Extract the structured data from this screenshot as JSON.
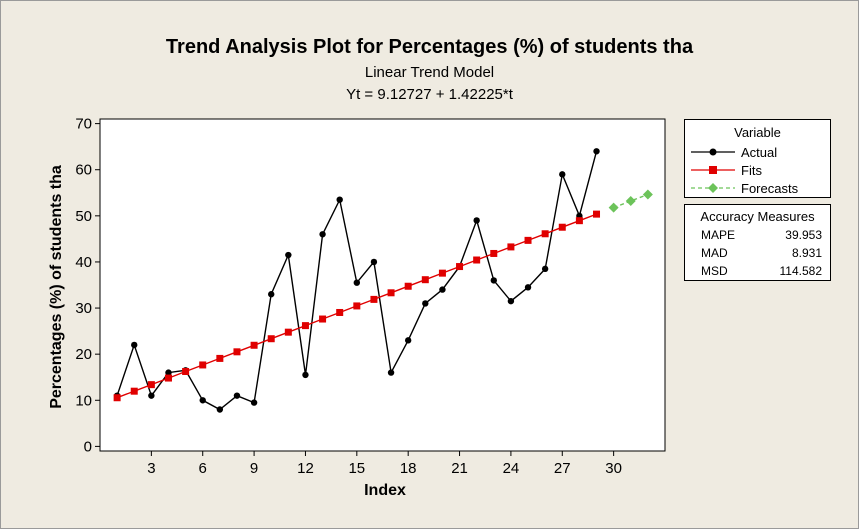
{
  "chart_data": {
    "type": "line",
    "title": "Trend Analysis Plot for Percentages (%) of students tha",
    "subtitle": "Linear Trend Model",
    "equation": "Yt = 9.12727 + 1.42225*t",
    "xlabel": "Index",
    "ylabel": "Percentages (%) of students tha",
    "xlim": [
      0,
      33
    ],
    "ylim": [
      -1,
      71
    ],
    "xticks": [
      3,
      6,
      9,
      12,
      15,
      18,
      21,
      24,
      27,
      30
    ],
    "yticks": [
      0,
      10,
      20,
      30,
      40,
      50,
      60,
      70
    ],
    "grid": false,
    "legend_position": "right",
    "legend_title": "Variable",
    "series": [
      {
        "name": "Actual",
        "color": "#000000",
        "marker": "circle",
        "x": [
          1,
          2,
          3,
          4,
          5,
          6,
          7,
          8,
          9,
          10,
          11,
          12,
          13,
          14,
          15,
          16,
          17,
          18,
          19,
          20,
          21,
          22,
          23,
          24,
          25,
          26,
          27,
          28,
          29
        ],
        "values": [
          11,
          22,
          11,
          16,
          16.5,
          10,
          8,
          11,
          9.5,
          33,
          41.5,
          15.5,
          46,
          53.5,
          35.5,
          40,
          16,
          23,
          31,
          34,
          39,
          49,
          36,
          31.5,
          34.5,
          38.5,
          59,
          50,
          64
        ]
      },
      {
        "name": "Fits",
        "color": "#e00000",
        "marker": "square",
        "x": [
          1,
          2,
          3,
          4,
          5,
          6,
          7,
          8,
          9,
          10,
          11,
          12,
          13,
          14,
          15,
          16,
          17,
          18,
          19,
          20,
          21,
          22,
          23,
          24,
          25,
          26,
          27,
          28,
          29
        ],
        "values": [
          10.55,
          11.97,
          13.39,
          14.82,
          16.24,
          17.66,
          19.08,
          20.51,
          21.93,
          23.35,
          24.77,
          26.19,
          27.62,
          29.04,
          30.46,
          31.88,
          33.31,
          34.73,
          36.15,
          37.57,
          39.0,
          40.42,
          41.84,
          43.26,
          44.68,
          46.11,
          47.53,
          48.95,
          50.37
        ]
      },
      {
        "name": "Forecasts",
        "color": "#6cc35a",
        "marker": "diamond",
        "x": [
          30,
          31,
          32
        ],
        "values": [
          51.79,
          53.22,
          54.64
        ]
      }
    ],
    "accuracy": {
      "title": "Accuracy Measures",
      "measures": [
        {
          "name": "MAPE",
          "value": "39.953"
        },
        {
          "name": "MAD",
          "value": "8.931"
        },
        {
          "name": "MSD",
          "value": "114.582"
        }
      ]
    }
  }
}
